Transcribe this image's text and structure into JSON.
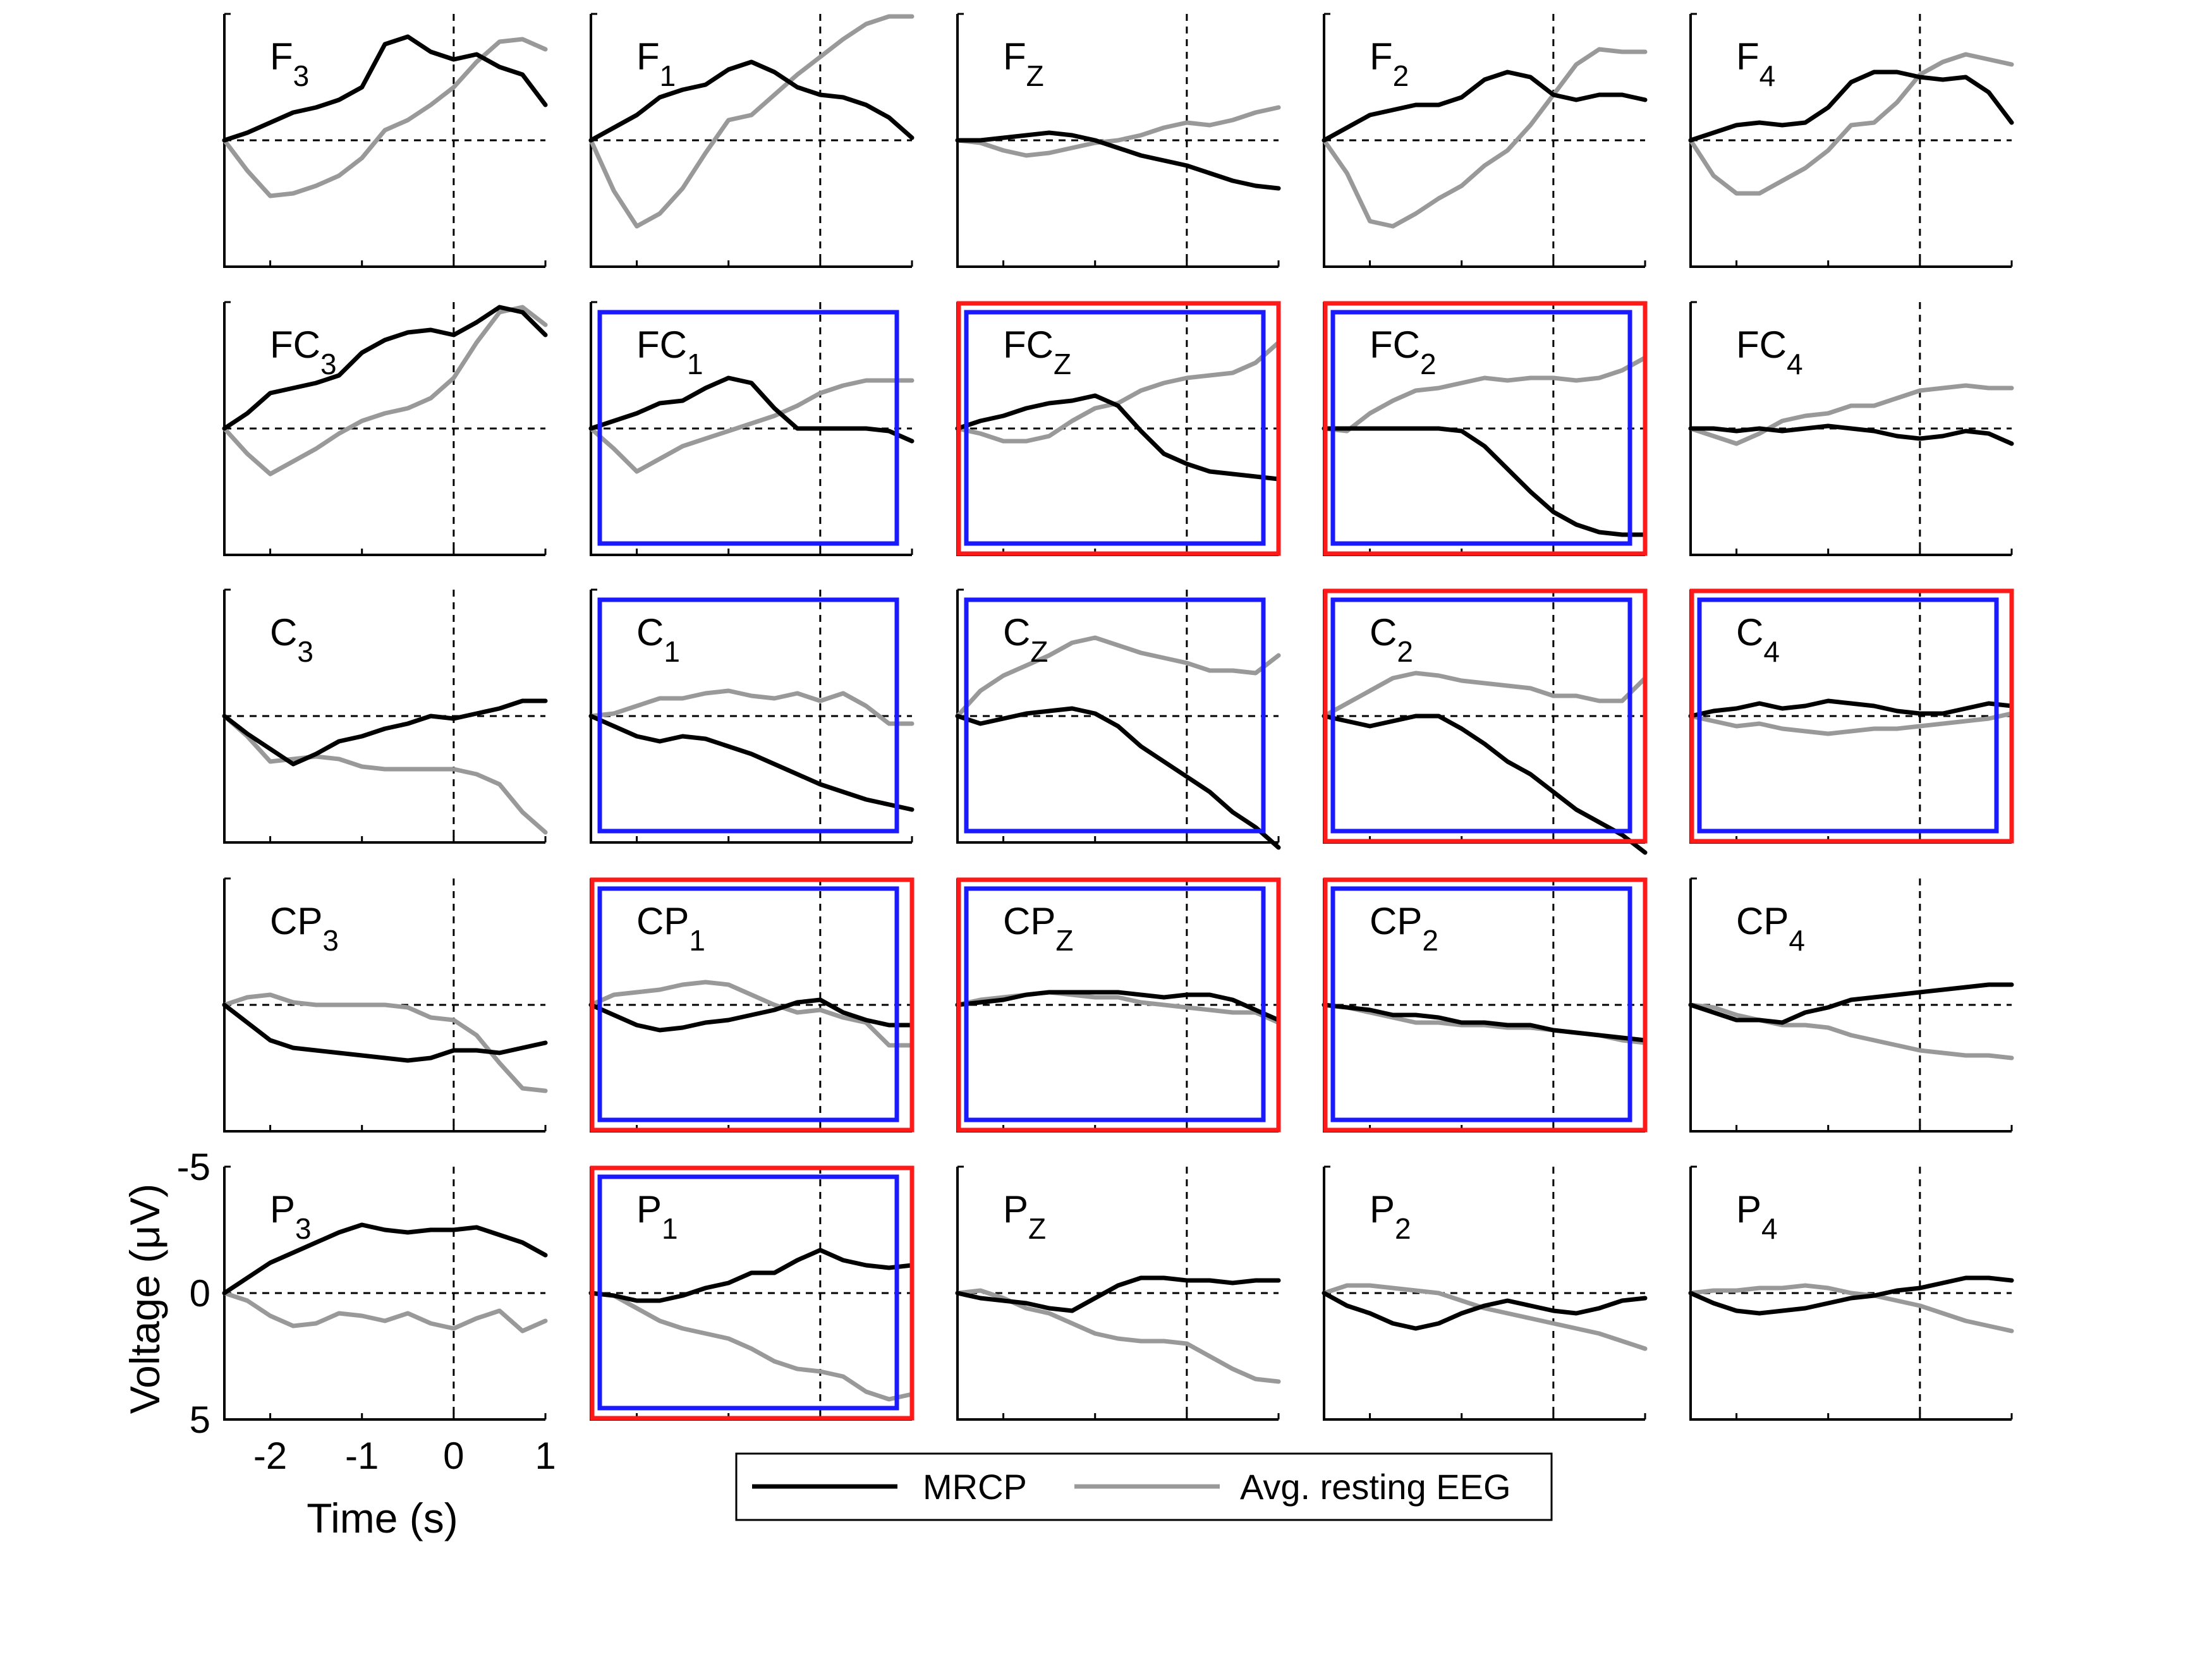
{
  "chart_data": {
    "type": "line",
    "layout": {
      "rows": 5,
      "cols": 5
    },
    "xlabel": "Time (s)",
    "ylabel": "Voltage (μV)",
    "xlim": [
      -2.5,
      1
    ],
    "ylim": [
      -5,
      5
    ],
    "y_reversed": true,
    "xticks": [
      -2,
      -1,
      0,
      1
    ],
    "xtick_labels": [
      "-2",
      "-1",
      "0",
      "1"
    ],
    "yticks": [
      -5,
      0,
      5
    ],
    "ytick_labels": [
      "-5",
      "0",
      "5"
    ],
    "reference_lines": {
      "x": 0,
      "y": 0,
      "style": "dashed"
    },
    "legend": {
      "placement": "bottom-center",
      "entries": [
        {
          "name": "MRCP",
          "color": "#000000"
        },
        {
          "name": "Avg. resting EEG",
          "color": "#999999"
        }
      ]
    },
    "highlight_colors": {
      "blue": "#1a1aff",
      "red": "#ff1a1a"
    },
    "x": [
      -2.5,
      -2.25,
      -2.0,
      -1.75,
      -1.5,
      -1.25,
      -1.0,
      -0.75,
      -0.5,
      -0.25,
      0.0,
      0.25,
      0.5,
      0.75,
      1.0
    ],
    "panels": [
      {
        "letter": "F",
        "sub": "3",
        "row": 0,
        "col": 0,
        "blue": false,
        "red": false,
        "mrcp": [
          0,
          -0.3,
          -0.7,
          -1.1,
          -1.3,
          -1.6,
          -2.1,
          -3.8,
          -4.1,
          -3.5,
          -3.2,
          -3.4,
          -2.9,
          -2.6,
          -1.4
        ],
        "rest": [
          0,
          1.2,
          2.2,
          2.1,
          1.8,
          1.4,
          0.7,
          -0.4,
          -0.8,
          -1.4,
          -2.1,
          -3.1,
          -3.9,
          -4.0,
          -3.6
        ]
      },
      {
        "letter": "F",
        "sub": "1",
        "row": 0,
        "col": 1,
        "blue": false,
        "red": false,
        "mrcp": [
          0,
          -0.5,
          -1.0,
          -1.7,
          -2.0,
          -2.2,
          -2.8,
          -3.1,
          -2.7,
          -2.1,
          -1.8,
          -1.7,
          -1.4,
          -0.9,
          -0.1
        ],
        "rest": [
          0,
          2.0,
          3.4,
          2.9,
          1.9,
          0.5,
          -0.8,
          -1.0,
          -1.8,
          -2.6,
          -3.3,
          -4.0,
          -4.6,
          -4.9,
          -4.9
        ]
      },
      {
        "letter": "F",
        "sub": "Z",
        "row": 0,
        "col": 2,
        "blue": false,
        "red": false,
        "mrcp": [
          0,
          0.0,
          -0.1,
          -0.2,
          -0.3,
          -0.2,
          0.0,
          0.3,
          0.6,
          0.8,
          1.0,
          1.3,
          1.6,
          1.8,
          1.9
        ],
        "rest": [
          0,
          0.1,
          0.4,
          0.6,
          0.5,
          0.3,
          0.1,
          0.0,
          -0.2,
          -0.5,
          -0.7,
          -0.6,
          -0.8,
          -1.1,
          -1.3
        ]
      },
      {
        "letter": "F",
        "sub": "2",
        "row": 0,
        "col": 3,
        "blue": false,
        "red": false,
        "mrcp": [
          0,
          -0.5,
          -1.0,
          -1.2,
          -1.4,
          -1.4,
          -1.7,
          -2.4,
          -2.7,
          -2.5,
          -1.8,
          -1.6,
          -1.8,
          -1.8,
          -1.6
        ],
        "rest": [
          0,
          1.3,
          3.2,
          3.4,
          2.9,
          2.3,
          1.8,
          1.0,
          0.4,
          -0.6,
          -1.8,
          -3.0,
          -3.6,
          -3.5,
          -3.5
        ]
      },
      {
        "letter": "F",
        "sub": "4",
        "row": 0,
        "col": 4,
        "blue": false,
        "red": false,
        "mrcp": [
          0,
          -0.3,
          -0.6,
          -0.7,
          -0.6,
          -0.7,
          -1.3,
          -2.3,
          -2.7,
          -2.7,
          -2.5,
          -2.4,
          -2.5,
          -1.9,
          -0.7
        ],
        "rest": [
          0,
          1.4,
          2.1,
          2.1,
          1.6,
          1.1,
          0.4,
          -0.6,
          -0.7,
          -1.5,
          -2.6,
          -3.1,
          -3.4,
          -3.2,
          -3.0
        ]
      },
      {
        "letter": "FC",
        "sub": "3",
        "row": 1,
        "col": 0,
        "blue": false,
        "red": false,
        "mrcp": [
          0,
          -0.6,
          -1.4,
          -1.6,
          -1.8,
          -2.1,
          -3.0,
          -3.5,
          -3.8,
          -3.9,
          -3.7,
          -4.2,
          -4.8,
          -4.6,
          -3.7
        ],
        "rest": [
          0,
          1.0,
          1.8,
          1.3,
          0.8,
          0.2,
          -0.3,
          -0.6,
          -0.8,
          -1.2,
          -2.0,
          -3.4,
          -4.6,
          -4.8,
          -4.1
        ]
      },
      {
        "letter": "FC",
        "sub": "1",
        "row": 1,
        "col": 1,
        "blue": true,
        "red": false,
        "mrcp": [
          0,
          -0.3,
          -0.6,
          -1.0,
          -1.1,
          -1.6,
          -2.0,
          -1.8,
          -0.8,
          0.0,
          0.0,
          0.0,
          0.0,
          0.1,
          0.5
        ],
        "rest": [
          0,
          0.8,
          1.7,
          1.2,
          0.7,
          0.4,
          0.1,
          -0.2,
          -0.5,
          -0.9,
          -1.4,
          -1.7,
          -1.9,
          -1.9,
          -1.9
        ]
      },
      {
        "letter": "FC",
        "sub": "Z",
        "row": 1,
        "col": 2,
        "blue": true,
        "red": true,
        "mrcp": [
          0,
          -0.3,
          -0.5,
          -0.8,
          -1.0,
          -1.1,
          -1.3,
          -0.9,
          0.1,
          1.0,
          1.4,
          1.7,
          1.8,
          1.9,
          2.0
        ],
        "rest": [
          0,
          0.2,
          0.5,
          0.5,
          0.3,
          -0.3,
          -0.8,
          -1.0,
          -1.5,
          -1.8,
          -2.0,
          -2.1,
          -2.2,
          -2.6,
          -3.4
        ]
      },
      {
        "letter": "FC",
        "sub": "2",
        "row": 1,
        "col": 3,
        "blue": true,
        "red": true,
        "mrcp": [
          0,
          0.0,
          0.0,
          0.0,
          0.0,
          0.0,
          0.1,
          0.7,
          1.6,
          2.5,
          3.3,
          3.8,
          4.1,
          4.2,
          4.2
        ],
        "rest": [
          0,
          0.1,
          -0.6,
          -1.1,
          -1.5,
          -1.6,
          -1.8,
          -2.0,
          -1.9,
          -2.0,
          -2.0,
          -1.9,
          -2.0,
          -2.3,
          -2.8
        ]
      },
      {
        "letter": "FC",
        "sub": "4",
        "row": 1,
        "col": 4,
        "blue": false,
        "red": false,
        "mrcp": [
          0,
          0.0,
          0.1,
          0.0,
          0.1,
          0.0,
          -0.1,
          0.0,
          0.1,
          0.3,
          0.4,
          0.3,
          0.1,
          0.2,
          0.6
        ],
        "rest": [
          0,
          0.3,
          0.6,
          0.2,
          -0.3,
          -0.5,
          -0.6,
          -0.9,
          -0.9,
          -1.2,
          -1.5,
          -1.6,
          -1.7,
          -1.6,
          -1.6
        ]
      },
      {
        "letter": "C",
        "sub": "3",
        "row": 2,
        "col": 0,
        "blue": false,
        "red": false,
        "mrcp": [
          0,
          0.7,
          1.3,
          1.9,
          1.5,
          1.0,
          0.8,
          0.5,
          0.3,
          0.0,
          0.1,
          -0.1,
          -0.3,
          -0.6,
          -0.6
        ],
        "rest": [
          0,
          0.8,
          1.8,
          1.7,
          1.6,
          1.7,
          2.0,
          2.1,
          2.1,
          2.1,
          2.1,
          2.3,
          2.7,
          3.8,
          4.6
        ]
      },
      {
        "letter": "C",
        "sub": "1",
        "row": 2,
        "col": 1,
        "blue": true,
        "red": false,
        "mrcp": [
          0,
          0.4,
          0.8,
          1.0,
          0.8,
          0.9,
          1.2,
          1.5,
          1.9,
          2.3,
          2.7,
          3.0,
          3.3,
          3.5,
          3.7
        ],
        "rest": [
          0,
          -0.1,
          -0.4,
          -0.7,
          -0.7,
          -0.9,
          -1.0,
          -0.8,
          -0.7,
          -0.9,
          -0.6,
          -0.9,
          -0.4,
          0.3,
          0.3
        ]
      },
      {
        "letter": "C",
        "sub": "Z",
        "row": 2,
        "col": 2,
        "blue": true,
        "red": false,
        "mrcp": [
          0,
          0.3,
          0.1,
          -0.1,
          -0.2,
          -0.3,
          -0.1,
          0.4,
          1.2,
          1.8,
          2.4,
          3.0,
          3.8,
          4.4,
          5.2
        ],
        "rest": [
          0,
          -1.0,
          -1.6,
          -2.0,
          -2.4,
          -2.9,
          -3.1,
          -2.8,
          -2.5,
          -2.3,
          -2.1,
          -1.8,
          -1.8,
          -1.7,
          -2.4
        ]
      },
      {
        "letter": "C",
        "sub": "2",
        "row": 2,
        "col": 3,
        "blue": true,
        "red": true,
        "mrcp": [
          0,
          0.2,
          0.4,
          0.2,
          0.0,
          0.0,
          0.5,
          1.1,
          1.8,
          2.3,
          3.0,
          3.7,
          4.2,
          4.7,
          5.4
        ],
        "rest": [
          0,
          -0.5,
          -1.0,
          -1.5,
          -1.7,
          -1.6,
          -1.4,
          -1.3,
          -1.2,
          -1.1,
          -0.8,
          -0.8,
          -0.6,
          -0.6,
          -1.5
        ]
      },
      {
        "letter": "C",
        "sub": "4",
        "row": 2,
        "col": 4,
        "blue": true,
        "red": true,
        "mrcp": [
          0,
          -0.2,
          -0.3,
          -0.5,
          -0.3,
          -0.4,
          -0.6,
          -0.5,
          -0.4,
          -0.2,
          -0.1,
          -0.1,
          -0.3,
          -0.5,
          -0.4
        ],
        "rest": [
          0,
          0.2,
          0.4,
          0.3,
          0.5,
          0.6,
          0.7,
          0.6,
          0.5,
          0.5,
          0.4,
          0.3,
          0.2,
          0.1,
          -0.1
        ]
      },
      {
        "letter": "CP",
        "sub": "3",
        "row": 3,
        "col": 0,
        "blue": false,
        "red": false,
        "mrcp": [
          0,
          0.7,
          1.4,
          1.7,
          1.8,
          1.9,
          2.0,
          2.1,
          2.2,
          2.1,
          1.8,
          1.8,
          1.9,
          1.7,
          1.5
        ],
        "rest": [
          0,
          -0.3,
          -0.4,
          -0.1,
          0.0,
          0.0,
          0.0,
          0.0,
          0.1,
          0.5,
          0.6,
          1.2,
          2.3,
          3.3,
          3.4
        ]
      },
      {
        "letter": "CP",
        "sub": "1",
        "row": 3,
        "col": 1,
        "blue": true,
        "red": true,
        "mrcp": [
          0,
          0.4,
          0.8,
          1.0,
          0.9,
          0.7,
          0.6,
          0.4,
          0.2,
          -0.1,
          -0.2,
          0.3,
          0.6,
          0.8,
          0.8
        ],
        "rest": [
          0,
          -0.4,
          -0.5,
          -0.6,
          -0.8,
          -0.9,
          -0.8,
          -0.4,
          0.0,
          0.3,
          0.2,
          0.5,
          0.7,
          1.6,
          1.6
        ]
      },
      {
        "letter": "CP",
        "sub": "Z",
        "row": 3,
        "col": 2,
        "blue": true,
        "red": true,
        "mrcp": [
          0,
          -0.1,
          -0.2,
          -0.4,
          -0.5,
          -0.5,
          -0.5,
          -0.5,
          -0.4,
          -0.3,
          -0.4,
          -0.4,
          -0.2,
          0.2,
          0.6
        ],
        "rest": [
          0,
          -0.2,
          -0.3,
          -0.4,
          -0.5,
          -0.4,
          -0.3,
          -0.3,
          -0.1,
          0.0,
          0.1,
          0.2,
          0.3,
          0.3,
          0.7
        ]
      },
      {
        "letter": "CP",
        "sub": "2",
        "row": 3,
        "col": 3,
        "blue": true,
        "red": true,
        "mrcp": [
          0,
          0.1,
          0.2,
          0.4,
          0.4,
          0.5,
          0.7,
          0.7,
          0.8,
          0.8,
          1.0,
          1.1,
          1.2,
          1.3,
          1.4
        ],
        "rest": [
          0,
          0.1,
          0.3,
          0.5,
          0.7,
          0.7,
          0.8,
          0.8,
          0.9,
          0.9,
          1.0,
          1.1,
          1.2,
          1.4,
          1.5
        ]
      },
      {
        "letter": "CP",
        "sub": "4",
        "row": 3,
        "col": 4,
        "blue": false,
        "red": false,
        "mrcp": [
          0,
          0.3,
          0.6,
          0.6,
          0.7,
          0.3,
          0.1,
          -0.2,
          -0.3,
          -0.4,
          -0.5,
          -0.6,
          -0.7,
          -0.8,
          -0.8
        ],
        "rest": [
          0,
          0.1,
          0.4,
          0.6,
          0.8,
          0.8,
          0.9,
          1.2,
          1.4,
          1.6,
          1.8,
          1.9,
          2.0,
          2.0,
          2.1
        ]
      },
      {
        "letter": "P",
        "sub": "3",
        "row": 4,
        "col": 0,
        "blue": false,
        "red": false,
        "mrcp": [
          0,
          -0.6,
          -1.2,
          -1.6,
          -2.0,
          -2.4,
          -2.7,
          -2.5,
          -2.4,
          -2.5,
          -2.5,
          -2.6,
          -2.3,
          -2.0,
          -1.5
        ],
        "rest": [
          0,
          0.3,
          0.9,
          1.3,
          1.2,
          0.8,
          0.9,
          1.1,
          0.8,
          1.2,
          1.4,
          1.0,
          0.7,
          1.5,
          1.1
        ]
      },
      {
        "letter": "P",
        "sub": "1",
        "row": 4,
        "col": 1,
        "blue": true,
        "red": true,
        "mrcp": [
          0,
          0.1,
          0.3,
          0.3,
          0.1,
          -0.2,
          -0.4,
          -0.8,
          -0.8,
          -1.3,
          -1.7,
          -1.3,
          -1.1,
          -1.0,
          -1.1
        ],
        "rest": [
          0,
          0.1,
          0.6,
          1.1,
          1.4,
          1.6,
          1.8,
          2.2,
          2.7,
          3.0,
          3.1,
          3.3,
          3.9,
          4.2,
          4.0
        ]
      },
      {
        "letter": "P",
        "sub": "Z",
        "row": 4,
        "col": 2,
        "blue": false,
        "red": false,
        "mrcp": [
          0,
          0.2,
          0.3,
          0.4,
          0.6,
          0.7,
          0.2,
          -0.3,
          -0.6,
          -0.6,
          -0.5,
          -0.5,
          -0.4,
          -0.5,
          -0.5
        ],
        "rest": [
          0,
          -0.1,
          0.2,
          0.6,
          0.8,
          1.2,
          1.6,
          1.8,
          1.9,
          1.9,
          2.0,
          2.5,
          3.0,
          3.4,
          3.5
        ]
      },
      {
        "letter": "P",
        "sub": "2",
        "row": 4,
        "col": 3,
        "blue": false,
        "red": false,
        "mrcp": [
          0,
          0.5,
          0.8,
          1.2,
          1.4,
          1.2,
          0.8,
          0.5,
          0.3,
          0.5,
          0.7,
          0.8,
          0.6,
          0.3,
          0.2
        ],
        "rest": [
          0,
          -0.3,
          -0.3,
          -0.2,
          -0.1,
          0.0,
          0.3,
          0.6,
          0.8,
          1.0,
          1.2,
          1.4,
          1.6,
          1.9,
          2.2
        ]
      },
      {
        "letter": "P",
        "sub": "4",
        "row": 4,
        "col": 4,
        "blue": false,
        "red": false,
        "mrcp": [
          0,
          0.4,
          0.7,
          0.8,
          0.7,
          0.6,
          0.4,
          0.2,
          0.1,
          -0.1,
          -0.2,
          -0.4,
          -0.6,
          -0.6,
          -0.5
        ],
        "rest": [
          0,
          -0.1,
          -0.1,
          -0.2,
          -0.2,
          -0.3,
          -0.2,
          0.0,
          0.1,
          0.3,
          0.5,
          0.8,
          1.1,
          1.3,
          1.5
        ]
      }
    ]
  }
}
